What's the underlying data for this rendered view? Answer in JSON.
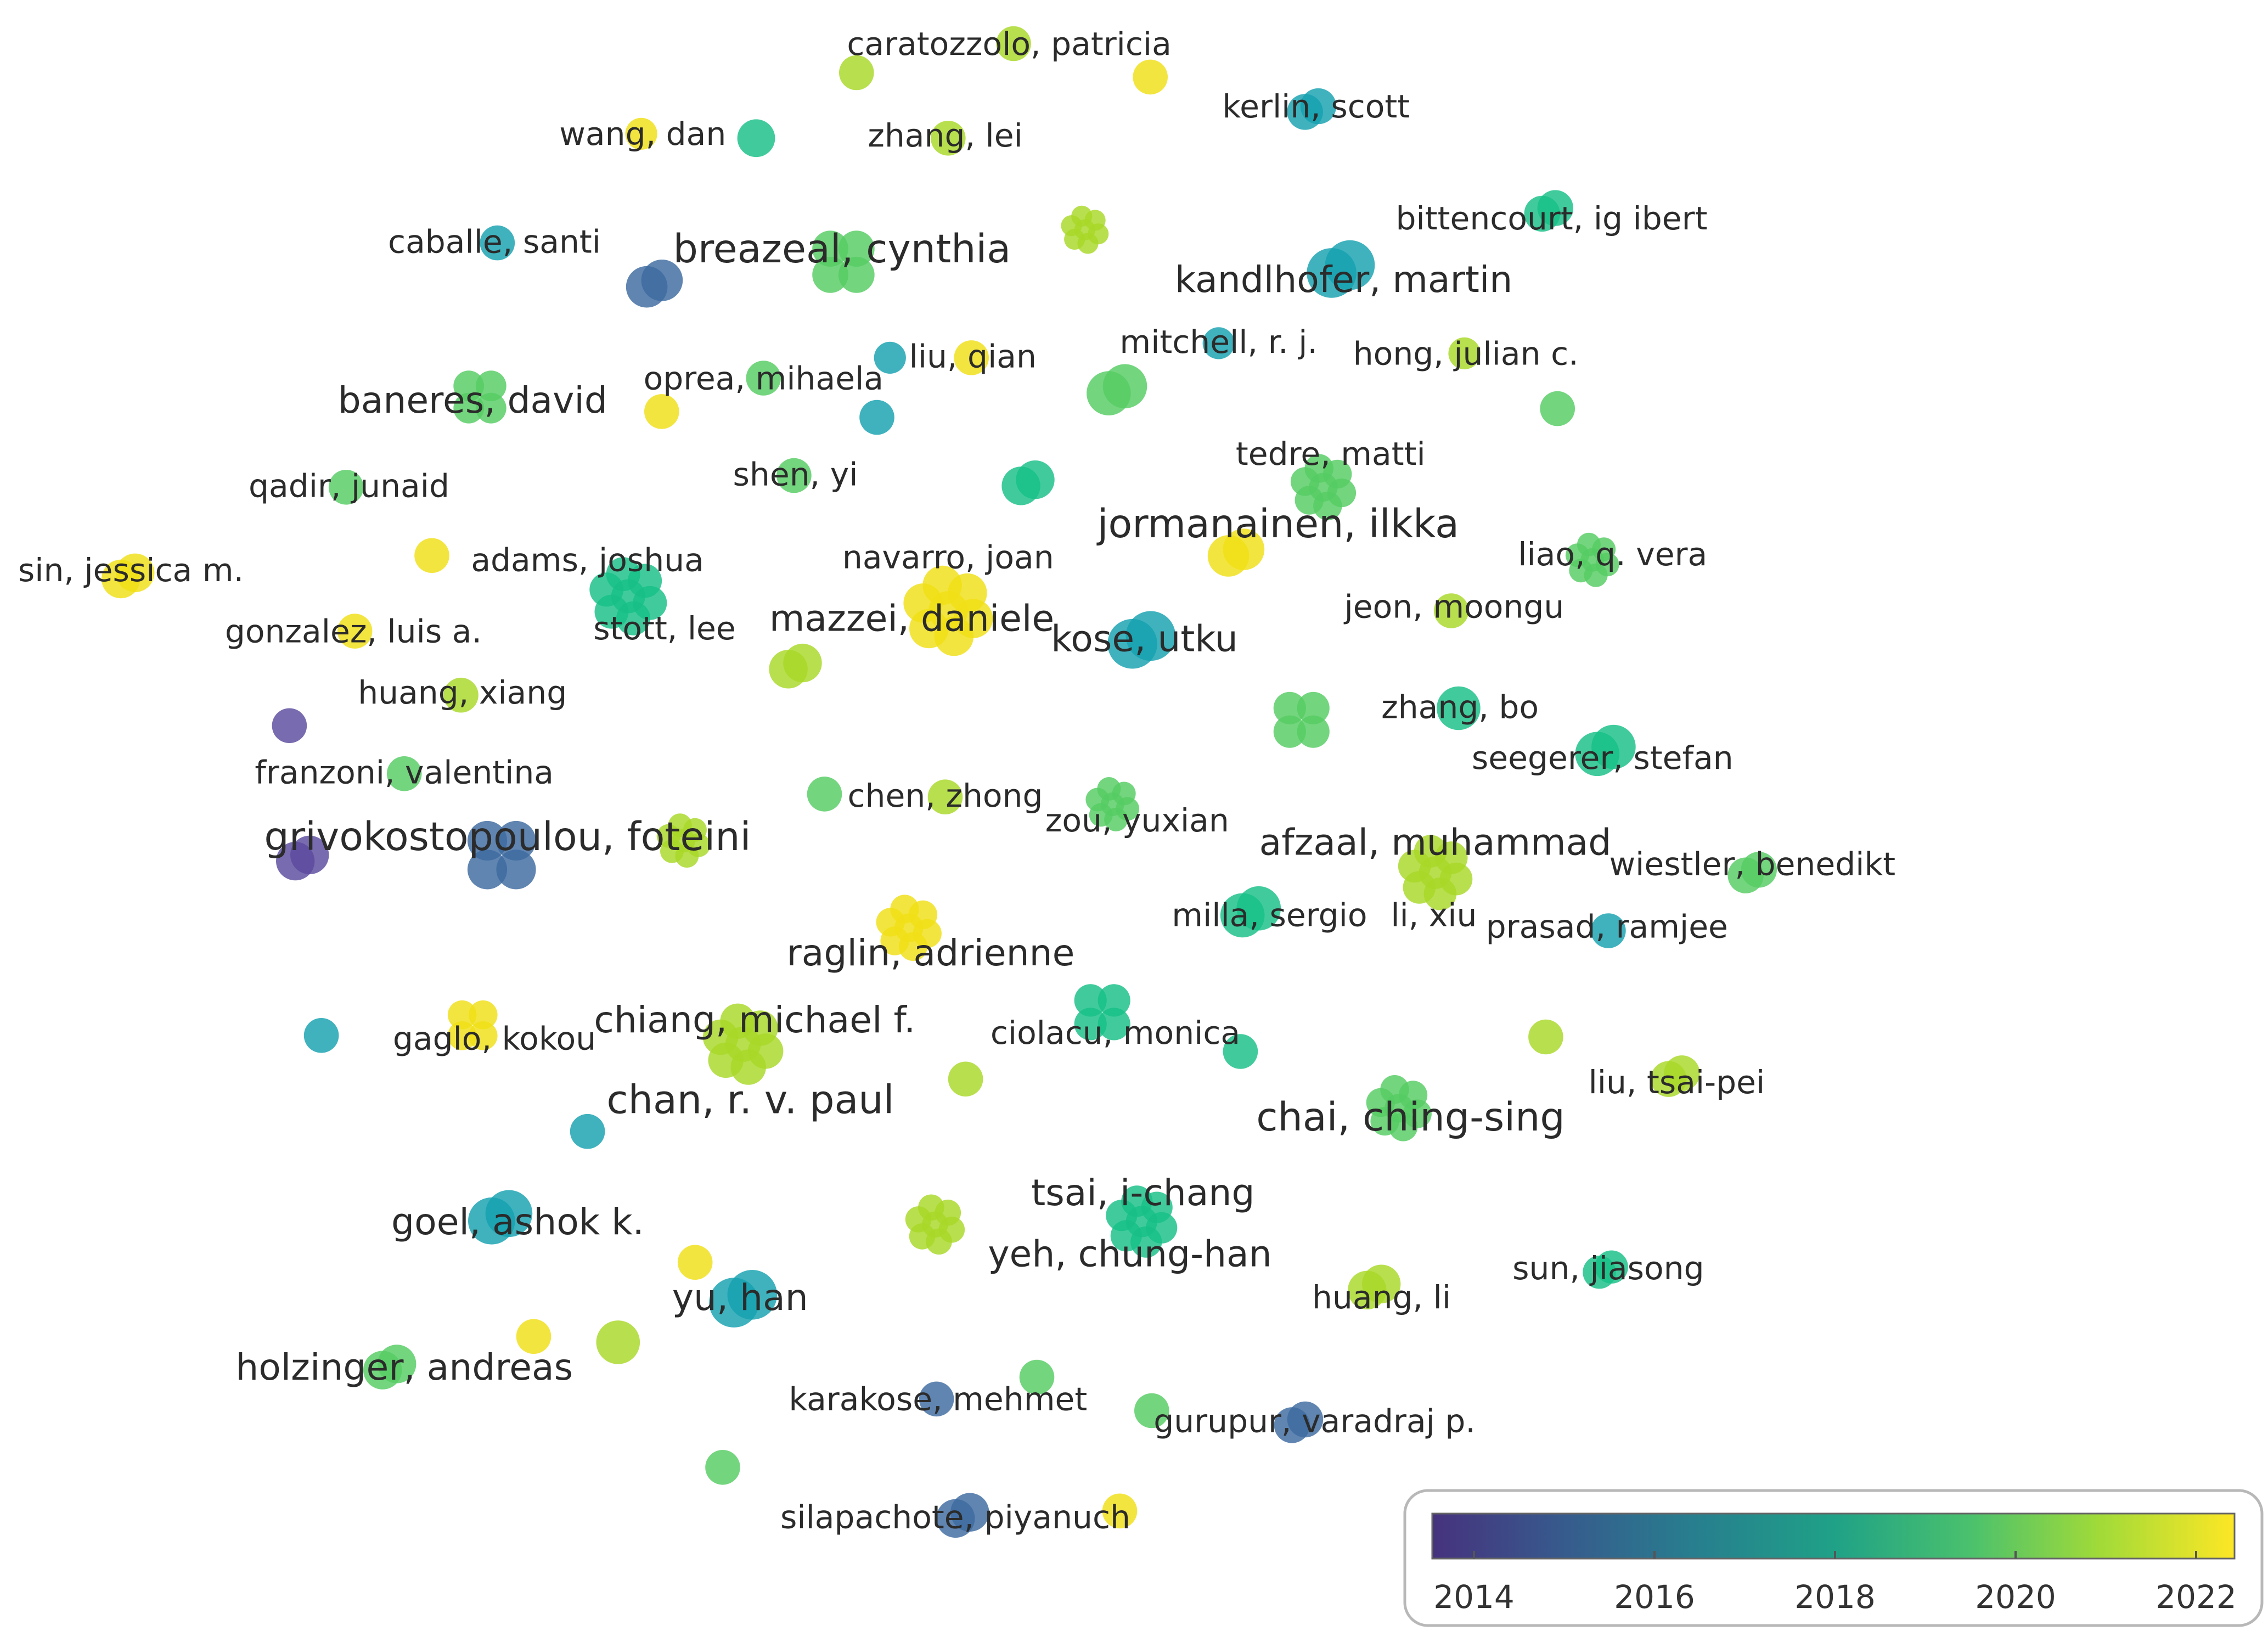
{
  "legend": {
    "ticks": [
      "2014",
      "2016",
      "2018",
      "2020",
      "2022"
    ],
    "colors": [
      "#46327e",
      "#365c8d",
      "#277f8e",
      "#1fa187",
      "#4ac16d",
      "#a0da39",
      "#fde725"
    ]
  },
  "authors": [
    "caratozzolo, patricia",
    "wang, dan",
    "zhang, lei",
    "kerlin, scott",
    "caballe, santi",
    "breazeal, cynthia",
    "bittencourt, ig ibert",
    "kandlhofer, martin",
    "mitchell, r. j.",
    "liu, qian",
    "hong, julian c.",
    "oprea, mihaela",
    "baneres, david",
    "qadir, junaid",
    "shen, yi",
    "tedre, matti",
    "jormanainen, ilkka",
    "sin, jessica m.",
    "adams, joshua",
    "navarro, joan",
    "liao, q. vera",
    "gonzalez, luis a.",
    "stott, lee",
    "mazzei, daniele",
    "kose, utku",
    "jeon, moongu",
    "huang, xiang",
    "zhang, bo",
    "seegerer, stefan",
    "franzoni, valentina",
    "chen, zhong",
    "zou, yuxian",
    "grivokostopoulou, foteini",
    "afzaal, muhammad",
    "wiestler, benedikt",
    "milla, sergio",
    "li, xiu",
    "prasad, ramjee",
    "raglin, adrienne",
    "chiang, michael f.",
    "gaglo, kokou",
    "ciolacu, monica",
    "chan, r. v. paul",
    "liu, tsai-pei",
    "chai, ching-sing",
    "tsai, i-chang",
    "goel, ashok k.",
    "yeh, chung-han",
    "sun, jiasong",
    "huang, li",
    "yu, han",
    "holzinger, andreas",
    "karakose, mehmet",
    "gurupur, varadraj p.",
    "silapachote, piyanuch"
  ]
}
